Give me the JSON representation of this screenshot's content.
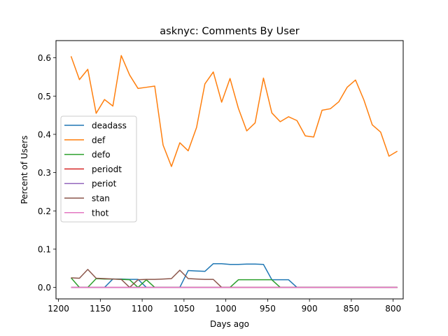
{
  "chart_data": {
    "type": "line",
    "title": "asknyc: Comments By User",
    "xlabel": "Days ago",
    "ylabel": "Percent of Users",
    "xlim": [
      1203,
      788
    ],
    "ylim": [
      -0.03,
      0.645
    ],
    "xticks": [
      1200,
      1150,
      1100,
      1050,
      1000,
      950,
      900,
      850,
      800
    ],
    "yticks": [
      0.0,
      0.1,
      0.2,
      0.3,
      0.4,
      0.5,
      0.6
    ],
    "ytick_labels": [
      "0.0",
      "0.1",
      "0.2",
      "0.3",
      "0.4",
      "0.5",
      "0.6"
    ],
    "grid": false,
    "legend_position": "center-left",
    "x": [
      1185,
      1175,
      1165,
      1155,
      1145,
      1135,
      1125,
      1115,
      1105,
      1095,
      1085,
      1075,
      1065,
      1055,
      1045,
      1035,
      1025,
      1015,
      1005,
      995,
      985,
      975,
      965,
      955,
      945,
      935,
      925,
      915,
      905,
      895,
      885,
      875,
      865,
      855,
      845,
      835,
      825,
      815,
      805,
      795
    ],
    "series": [
      {
        "name": "deadass",
        "color": "#1f77b4",
        "values": [
          0.0,
          0.0,
          0.0,
          0.0,
          0.0,
          0.022,
          0.022,
          0.021,
          0.021,
          0.0,
          0.0,
          0.0,
          0.0,
          0.0,
          0.044,
          0.043,
          0.042,
          0.062,
          0.062,
          0.06,
          0.06,
          0.061,
          0.061,
          0.06,
          0.02,
          0.02,
          0.02,
          0.0,
          0.0,
          0.0,
          0.0,
          0.0,
          0.0,
          0.0,
          0.0,
          0.0,
          0.0,
          0.0,
          0.0,
          0.0
        ]
      },
      {
        "name": "def",
        "color": "#ff7f0e",
        "values": [
          0.604,
          0.543,
          0.57,
          0.455,
          0.491,
          0.474,
          0.606,
          0.555,
          0.52,
          0.523,
          0.526,
          0.372,
          0.316,
          0.378,
          0.357,
          0.418,
          0.532,
          0.563,
          0.484,
          0.546,
          0.468,
          0.409,
          0.43,
          0.547,
          0.456,
          0.433,
          0.446,
          0.436,
          0.396,
          0.393,
          0.463,
          0.467,
          0.485,
          0.523,
          0.542,
          0.49,
          0.425,
          0.406,
          0.343,
          0.356
        ]
      },
      {
        "name": "defo",
        "color": "#2ca02c",
        "values": [
          0.025,
          0.0,
          0.0,
          0.023,
          0.022,
          0.022,
          0.021,
          0.02,
          0.0,
          0.02,
          0.0,
          0.0,
          0.0,
          0.0,
          0.0,
          0.0,
          0.0,
          0.0,
          0.0,
          0.0,
          0.02,
          0.02,
          0.02,
          0.02,
          0.02,
          0.0,
          0.0,
          0.0,
          0.0,
          0.0,
          0.0,
          0.0,
          0.0,
          0.0,
          0.0,
          0.0,
          0.0,
          0.0,
          0.0,
          0.0
        ]
      },
      {
        "name": "periodt",
        "color": "#d62728",
        "values": [
          0.0,
          0.0,
          0.0,
          0.0,
          0.0,
          0.0,
          0.0,
          0.0,
          0.0,
          0.0,
          0.0,
          0.0,
          0.0,
          0.0,
          0.0,
          0.0,
          0.0,
          0.0,
          0.0,
          0.0,
          0.0,
          0.0,
          0.0,
          0.0,
          0.0,
          0.0,
          0.0,
          0.0,
          0.0,
          0.0,
          0.0,
          0.0,
          0.0,
          0.0,
          0.0,
          0.0,
          0.0,
          0.0,
          0.0,
          0.0
        ]
      },
      {
        "name": "periot",
        "color": "#9467bd",
        "values": [
          0.0,
          0.0,
          0.0,
          0.0,
          0.0,
          0.0,
          0.0,
          0.0,
          0.0,
          0.0,
          0.0,
          0.0,
          0.0,
          0.0,
          0.0,
          0.0,
          0.0,
          0.0,
          0.0,
          0.0,
          0.0,
          0.0,
          0.0,
          0.0,
          0.0,
          0.0,
          0.0,
          0.0,
          0.0,
          0.0,
          0.0,
          0.0,
          0.0,
          0.0,
          0.0,
          0.0,
          0.0,
          0.0,
          0.0,
          0.0
        ]
      },
      {
        "name": "stan",
        "color": "#8c564b",
        "values": [
          0.025,
          0.024,
          0.047,
          0.024,
          0.023,
          0.022,
          0.021,
          0.0,
          0.02,
          0.021,
          0.021,
          0.022,
          0.023,
          0.045,
          0.023,
          0.022,
          0.021,
          0.021,
          0.0,
          0.0,
          0.0,
          0.0,
          0.0,
          0.0,
          0.0,
          0.0,
          0.0,
          0.0,
          0.0,
          0.0,
          0.0,
          0.0,
          0.0,
          0.0,
          0.0,
          0.0,
          0.0,
          0.0,
          0.0,
          0.0
        ]
      },
      {
        "name": "thot",
        "color": "#e377c2",
        "values": [
          0.0,
          0.0,
          0.0,
          0.0,
          0.0,
          0.0,
          0.0,
          0.0,
          0.0,
          0.0,
          0.0,
          0.0,
          0.0,
          0.0,
          0.0,
          0.0,
          0.0,
          0.0,
          0.0,
          0.0,
          0.0,
          0.0,
          0.0,
          0.0,
          0.0,
          0.0,
          0.0,
          0.0,
          0.0,
          0.0,
          0.0,
          0.0,
          0.0,
          0.0,
          0.0,
          0.0,
          0.0,
          0.0,
          0.0,
          0.0
        ]
      }
    ]
  }
}
